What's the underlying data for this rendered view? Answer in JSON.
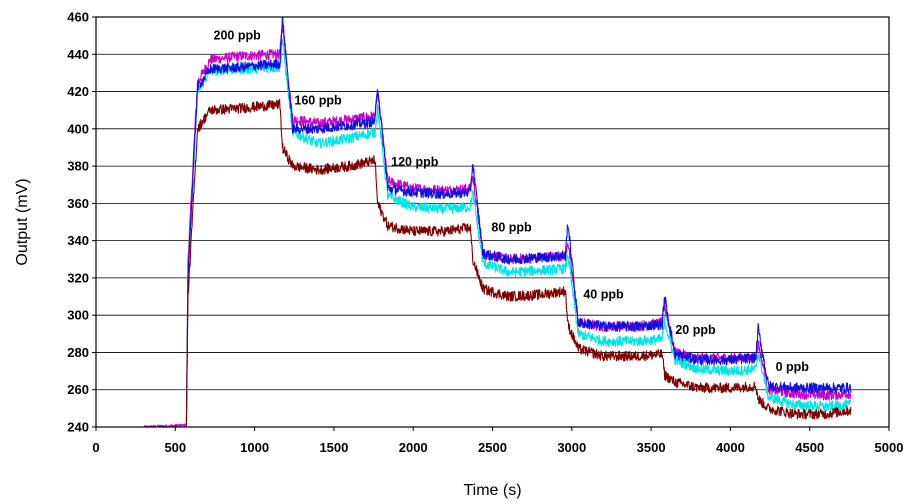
{
  "chart_data": {
    "type": "line",
    "title": "",
    "xlabel": "Time (s)",
    "ylabel": "Output (mV)",
    "xlim": [
      0,
      5000
    ],
    "ylim": [
      240,
      460
    ],
    "xticks": [
      0,
      500,
      1000,
      1500,
      2000,
      2500,
      3000,
      3500,
      4000,
      4500,
      5000
    ],
    "yticks": [
      240,
      260,
      280,
      300,
      320,
      340,
      360,
      380,
      400,
      420,
      440,
      460
    ],
    "grid": "horizontal",
    "legend": "none",
    "annotations": [
      {
        "text": "200 ppb",
        "x": 890,
        "y": 448
      },
      {
        "text": "160 ppb",
        "x": 1400,
        "y": 413
      },
      {
        "text": "120 ppb",
        "x": 2010,
        "y": 380
      },
      {
        "text": "80 ppb",
        "x": 2620,
        "y": 345
      },
      {
        "text": "40 ppb",
        "x": 3200,
        "y": 309
      },
      {
        "text": "20 ppb",
        "x": 3780,
        "y": 290
      },
      {
        "text": "0 ppb",
        "x": 4390,
        "y": 270
      }
    ],
    "series": [
      {
        "color": "#cc00cc",
        "x": [
          300,
          570,
          580,
          640,
          720,
          900,
          1160,
          1175,
          1240,
          1400,
          1600,
          1760,
          1775,
          1840,
          2000,
          2200,
          2360,
          2375,
          2440,
          2600,
          2800,
          2960,
          2975,
          3040,
          3200,
          3400,
          3570,
          3585,
          3650,
          3800,
          4000,
          4160,
          4175,
          4240,
          4400,
          4600,
          4760
        ],
        "y": [
          240,
          241,
          330,
          425,
          437,
          439,
          440,
          458,
          405,
          403,
          405,
          407,
          420,
          372,
          368,
          367,
          368,
          375,
          333,
          330,
          331,
          332,
          340,
          296,
          294,
          294,
          296,
          305,
          280,
          277,
          277,
          277,
          285,
          260,
          258,
          257,
          258
        ]
      },
      {
        "color": "#00e5e5",
        "x": [
          570,
          580,
          640,
          720,
          900,
          1160,
          1175,
          1240,
          1400,
          1600,
          1760,
          1775,
          1840,
          2000,
          2200,
          2360,
          2375,
          2440,
          2600,
          2800,
          2960,
          2975,
          3040,
          3200,
          3400,
          3570,
          3585,
          3650,
          3800,
          4000,
          4160,
          4175,
          4240,
          4400,
          4600,
          4760
        ],
        "y": [
          241,
          320,
          420,
          431,
          432,
          433,
          448,
          398,
          392,
          395,
          398,
          412,
          364,
          358,
          357,
          358,
          366,
          328,
          323,
          324,
          325,
          333,
          290,
          286,
          286,
          287,
          297,
          276,
          271,
          270,
          271,
          280,
          256,
          252,
          251,
          252
        ]
      },
      {
        "color": "#1010dd",
        "x": [
          570,
          580,
          640,
          720,
          900,
          1160,
          1175,
          1240,
          1400,
          1600,
          1760,
          1775,
          1840,
          2000,
          2200,
          2360,
          2375,
          2440,
          2600,
          2800,
          2960,
          2975,
          3040,
          3200,
          3400,
          3570,
          3585,
          3650,
          3800,
          4000,
          4160,
          4175,
          4240,
          4400,
          4600,
          4760
        ],
        "y": [
          241,
          322,
          422,
          432,
          433,
          435,
          460,
          400,
          400,
          402,
          404,
          423,
          368,
          366,
          365,
          366,
          382,
          333,
          330,
          331,
          332,
          350,
          296,
          294,
          294,
          295,
          310,
          279,
          276,
          276,
          277,
          293,
          262,
          261,
          261,
          261
        ]
      },
      {
        "color": "#800000",
        "x": [
          570,
          580,
          640,
          720,
          900,
          1160,
          1175,
          1240,
          1400,
          1600,
          1760,
          1775,
          1840,
          2000,
          2200,
          2360,
          2375,
          2440,
          2600,
          2800,
          2960,
          2975,
          3040,
          3200,
          3400,
          3570,
          3585,
          3650,
          3800,
          4000,
          4160,
          4175,
          4240,
          4400,
          4600,
          4760
        ],
        "y": [
          241,
          310,
          400,
          410,
          411,
          413,
          390,
          380,
          378,
          380,
          383,
          360,
          348,
          345,
          345,
          347,
          330,
          314,
          310,
          311,
          313,
          295,
          282,
          278,
          278,
          279,
          268,
          264,
          261,
          261,
          262,
          255,
          250,
          247,
          247,
          249
        ]
      }
    ]
  }
}
